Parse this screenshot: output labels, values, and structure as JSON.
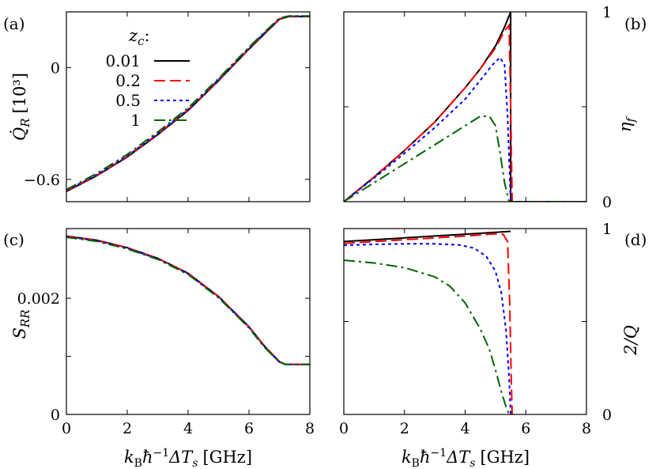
{
  "chart_data": [
    {
      "panel": "(a)",
      "type": "line",
      "xlabel": "k_B ħ^{-1} ΔT_s [GHz]",
      "ylabel": "Q̇_R [10^3]",
      "xlim": [
        0,
        8
      ],
      "ylim": [
        -0.72,
        0.3
      ],
      "xticks": [
        0,
        2,
        4,
        6,
        8
      ],
      "yticks": [
        {
          "value": 0,
          "label": "0"
        },
        {
          "value": -0.6,
          "label": "−0.6"
        }
      ],
      "legend": {
        "title": "z_c:",
        "placement": "upper-left"
      },
      "series": [
        {
          "name": "0.01",
          "color": "#000000",
          "dash": "solid",
          "x": [
            0,
            1,
            2,
            3,
            4,
            5,
            6,
            6.5,
            7,
            7.3,
            8
          ],
          "y": [
            -0.665,
            -0.58,
            -0.48,
            -0.36,
            -0.23,
            -0.07,
            0.1,
            0.18,
            0.26,
            0.275,
            0.275
          ]
        },
        {
          "name": "0.2",
          "color": "#ff0000",
          "dash": "dashed",
          "x": [
            0,
            1,
            2,
            3,
            4,
            5,
            6,
            6.5,
            7,
            7.3,
            8
          ],
          "y": [
            -0.663,
            -0.578,
            -0.477,
            -0.357,
            -0.227,
            -0.067,
            0.103,
            0.183,
            0.262,
            0.276,
            0.276
          ]
        },
        {
          "name": "0.5",
          "color": "#0000ee",
          "dash": "dotted",
          "x": [
            0,
            1,
            2,
            3,
            4,
            5,
            6,
            6.5,
            7,
            7.3,
            8
          ],
          "y": [
            -0.66,
            -0.575,
            -0.474,
            -0.354,
            -0.224,
            -0.064,
            0.106,
            0.186,
            0.264,
            0.277,
            0.277
          ]
        },
        {
          "name": "1",
          "color": "#006400",
          "dash": "dashdot",
          "x": [
            0,
            1,
            2,
            3,
            4,
            5,
            6,
            6.5,
            7,
            7.3,
            8
          ],
          "y": [
            -0.655,
            -0.568,
            -0.466,
            -0.346,
            -0.216,
            -0.058,
            0.11,
            0.19,
            0.266,
            0.278,
            0.278
          ]
        }
      ]
    },
    {
      "panel": "(b)",
      "type": "line",
      "xlabel": "k_B ħ^{-1} ΔT_s [GHz]",
      "ylabel": "η_f",
      "xlim": [
        0,
        8
      ],
      "ylim": [
        0,
        1
      ],
      "xticks": [
        0,
        2,
        4,
        6,
        8
      ],
      "yticks": [
        {
          "value": 0,
          "label": "0"
        },
        {
          "value": 1,
          "label": "1"
        }
      ],
      "y_axis_side": "right",
      "series": [
        {
          "name": "0.01",
          "color": "#000000",
          "dash": "solid",
          "x": [
            0,
            1,
            2,
            3,
            4,
            4.5,
            5,
            5.3,
            5.5,
            5.5,
            5.6,
            8
          ],
          "y": [
            0,
            0.13,
            0.27,
            0.42,
            0.6,
            0.7,
            0.82,
            0.92,
            1.0,
            0,
            0,
            0
          ]
        },
        {
          "name": "0.2",
          "color": "#ff0000",
          "dash": "dashed",
          "x": [
            0,
            1,
            2,
            3,
            4,
            4.5,
            5,
            5.3,
            5.45,
            5.5,
            5.55,
            8
          ],
          "y": [
            0,
            0.13,
            0.27,
            0.42,
            0.6,
            0.7,
            0.81,
            0.9,
            0.93,
            0.5,
            0,
            0
          ]
        },
        {
          "name": "0.5",
          "color": "#0000ee",
          "dash": "dotted",
          "x": [
            0,
            1,
            2,
            3,
            4,
            4.5,
            4.9,
            5.15,
            5.3,
            5.4,
            5.5,
            8
          ],
          "y": [
            0,
            0.125,
            0.255,
            0.39,
            0.54,
            0.64,
            0.72,
            0.76,
            0.72,
            0.45,
            0,
            0
          ]
        },
        {
          "name": "1",
          "color": "#006400",
          "dash": "dashdot",
          "x": [
            0,
            1,
            2,
            3,
            4,
            4.5,
            4.8,
            5.0,
            5.15,
            5.3,
            5.45,
            8
          ],
          "y": [
            0,
            0.1,
            0.2,
            0.3,
            0.4,
            0.45,
            0.45,
            0.4,
            0.26,
            0.1,
            0,
            0
          ]
        }
      ]
    },
    {
      "panel": "(c)",
      "type": "line",
      "xlabel": "k_B ħ^{-1} ΔT_s [GHz]",
      "ylabel": "S_RR",
      "xlim": [
        0,
        8
      ],
      "ylim": [
        0,
        0.0032
      ],
      "xticks": [
        0,
        2,
        4,
        6,
        8
      ],
      "yticks": [
        {
          "value": 0,
          "label": "0"
        },
        {
          "value": 0.002,
          "label": "0.002"
        }
      ],
      "series": [
        {
          "name": "0.01",
          "color": "#000000",
          "dash": "solid",
          "x": [
            0,
            1,
            2,
            3,
            4,
            5,
            6,
            6.5,
            7,
            7.2,
            8
          ],
          "y": [
            0.00307,
            0.003,
            0.00287,
            0.00269,
            0.00243,
            0.00203,
            0.00151,
            0.00118,
            0.00091,
            0.00086,
            0.00086
          ]
        },
        {
          "name": "0.2",
          "color": "#ff0000",
          "dash": "dashed",
          "x": [
            0,
            1,
            2,
            3,
            4,
            5,
            6,
            6.5,
            7,
            7.2,
            8
          ],
          "y": [
            0.00307,
            0.003,
            0.00287,
            0.00269,
            0.00243,
            0.00203,
            0.00151,
            0.00118,
            0.00091,
            0.00086,
            0.00086
          ]
        },
        {
          "name": "0.5",
          "color": "#0000ee",
          "dash": "dotted",
          "x": [
            0,
            1,
            2,
            3,
            4,
            5,
            6,
            6.5,
            7,
            7.2,
            8
          ],
          "y": [
            0.00306,
            0.00299,
            0.00286,
            0.00268,
            0.00242,
            0.00202,
            0.0015,
            0.00117,
            0.0009,
            0.00086,
            0.00086
          ]
        },
        {
          "name": "1",
          "color": "#006400",
          "dash": "dashdot",
          "x": [
            0,
            1,
            2,
            3,
            4,
            5,
            6,
            6.5,
            7,
            7.2,
            8
          ],
          "y": [
            0.00305,
            0.00298,
            0.00285,
            0.00267,
            0.00241,
            0.00201,
            0.00149,
            0.00116,
            0.0009,
            0.00086,
            0.00086
          ]
        }
      ]
    },
    {
      "panel": "(d)",
      "type": "line",
      "xlabel": "k_B ħ^{-1} ΔT_s [GHz]",
      "ylabel": "2/Q",
      "xlim": [
        0,
        8
      ],
      "ylim": [
        0,
        1
      ],
      "xticks": [
        0,
        2,
        4,
        6,
        8
      ],
      "yticks": [
        {
          "value": 0,
          "label": "0"
        },
        {
          "value": 1,
          "label": "1"
        }
      ],
      "y_axis_side": "right",
      "series": [
        {
          "name": "0.01",
          "color": "#000000",
          "dash": "solid",
          "x": [
            0,
            1,
            2,
            3,
            4,
            5,
            5.5
          ],
          "y": [
            0.93,
            0.94,
            0.95,
            0.96,
            0.97,
            0.98,
            0.985
          ]
        },
        {
          "name": "0.2",
          "color": "#ff0000",
          "dash": "dashed",
          "x": [
            0,
            1,
            2,
            3,
            4,
            4.5,
            5,
            5.25,
            5.4,
            5.47,
            5.52,
            5.55
          ],
          "y": [
            0.92,
            0.93,
            0.94,
            0.95,
            0.96,
            0.966,
            0.972,
            0.97,
            0.93,
            0.6,
            0.2,
            0
          ]
        },
        {
          "name": "0.5",
          "color": "#0000ee",
          "dash": "dotted",
          "x": [
            0,
            1,
            2,
            3,
            3.8,
            4.3,
            4.7,
            5.0,
            5.2,
            5.35,
            5.45,
            5.5
          ],
          "y": [
            0.91,
            0.915,
            0.918,
            0.918,
            0.912,
            0.895,
            0.85,
            0.77,
            0.65,
            0.45,
            0.2,
            0
          ]
        },
        {
          "name": "1",
          "color": "#006400",
          "dash": "dashdot",
          "x": [
            0,
            1,
            2,
            3,
            3.5,
            4,
            4.5,
            4.8,
            5.0,
            5.2,
            5.35,
            5.45
          ],
          "y": [
            0.83,
            0.815,
            0.79,
            0.74,
            0.69,
            0.6,
            0.46,
            0.35,
            0.24,
            0.12,
            0.04,
            0
          ]
        }
      ]
    }
  ],
  "text": {
    "label_a": "(a)",
    "label_b": "(b)",
    "label_c": "(c)",
    "label_d": "(d)",
    "ylabel_a": "Q̇",
    "ylabel_a_sub": "R",
    "ylabel_a_unit": "[10³]",
    "ylabel_b": "η",
    "ylabel_b_sub": "f",
    "ylabel_c": "S",
    "ylabel_c_sub": "RR",
    "ylabel_d": "2/Q",
    "xlabel_main": "k",
    "xlabel_sub": "B",
    "xlabel_hbar": "ħ",
    "xlabel_exp": "−1",
    "xlabel_delta": "ΔT",
    "xlabel_sub2": "s",
    "xlabel_unit": "[GHz]",
    "legend_title": "z",
    "legend_title_sub": "c",
    "legend_title_colon": ":"
  }
}
